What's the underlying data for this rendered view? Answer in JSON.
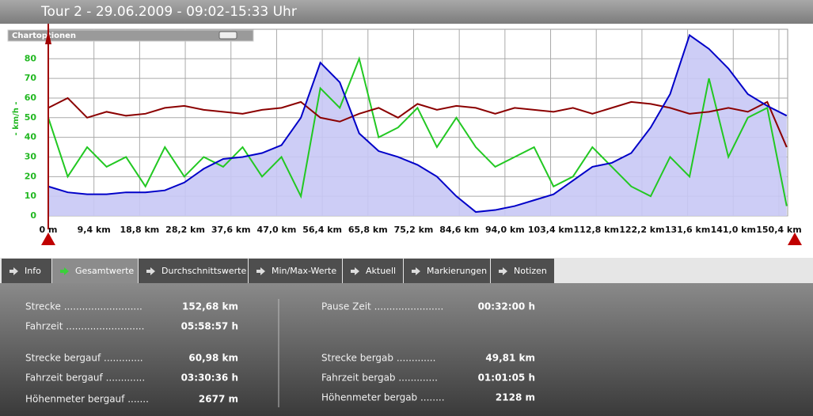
{
  "header": {
    "title": "Tour 2 - 29.06.2009 - 09:02-15:33 Uhr"
  },
  "chart_options": "Chartoptionen",
  "chart_data": {
    "type": "line",
    "y_label": "- km/h -",
    "x": [
      0,
      4,
      8,
      12,
      16,
      20,
      24,
      28,
      32,
      36,
      40,
      44,
      48,
      52,
      56,
      60,
      64,
      68,
      72,
      76,
      80,
      84,
      88,
      92,
      96,
      100,
      104,
      108,
      112,
      116,
      120,
      124,
      128,
      132,
      136,
      140,
      144,
      148,
      152
    ],
    "series": [
      {
        "color": "#0000c8",
        "fill": "#c8c8f5",
        "values": [
          15,
          12,
          11,
          11,
          12,
          12,
          13,
          17,
          24,
          29,
          30,
          32,
          36,
          50,
          78,
          68,
          42,
          33,
          30,
          26,
          20,
          10,
          2,
          3,
          5,
          8,
          11,
          18,
          25,
          27,
          32,
          45,
          62,
          92,
          85,
          75,
          62,
          56,
          51
        ]
      },
      {
        "color": "#22c822",
        "values": [
          50,
          20,
          35,
          25,
          30,
          15,
          35,
          20,
          30,
          25,
          35,
          20,
          30,
          10,
          65,
          55,
          80,
          40,
          45,
          55,
          35,
          50,
          35,
          25,
          30,
          35,
          15,
          20,
          35,
          25,
          15,
          10,
          30,
          20,
          70,
          30,
          50,
          55,
          5
        ]
      },
      {
        "color": "#8b0000",
        "values": [
          55,
          60,
          50,
          53,
          51,
          52,
          55,
          56,
          54,
          53,
          52,
          54,
          55,
          58,
          50,
          48,
          52,
          55,
          50,
          57,
          54,
          56,
          55,
          52,
          55,
          54,
          53,
          55,
          52,
          55,
          58,
          57,
          55,
          52,
          53,
          55,
          53,
          58,
          35
        ]
      }
    ],
    "xlim": [
      0,
      152.2
    ],
    "ylim": [
      0,
      95
    ],
    "xticks": [
      {
        "value": 0,
        "label": "0 m"
      },
      {
        "value": 9.4,
        "label": "9,4 km"
      },
      {
        "value": 18.8,
        "label": "18,8 km"
      },
      {
        "value": 28.2,
        "label": "28,2 km"
      },
      {
        "value": 37.6,
        "label": "37,6 km"
      },
      {
        "value": 47.0,
        "label": "47,0 km"
      },
      {
        "value": 56.4,
        "label": "56,4 km"
      },
      {
        "value": 65.8,
        "label": "65,8 km"
      },
      {
        "value": 75.2,
        "label": "75,2 km"
      },
      {
        "value": 84.6,
        "label": "84,6 km"
      },
      {
        "value": 94.0,
        "label": "94,0 km"
      },
      {
        "value": 103.4,
        "label": "103,4 km"
      },
      {
        "value": 112.8,
        "label": "112,8 km"
      },
      {
        "value": 122.2,
        "label": "122,2 km"
      },
      {
        "value": 131.6,
        "label": "131,6 km"
      },
      {
        "value": 141.0,
        "label": "141,0 km"
      },
      {
        "value": 150.4,
        "label": "150,4 km"
      }
    ],
    "yticks": [
      0,
      10,
      20,
      30,
      40,
      50,
      60,
      70,
      80
    ],
    "grid": true
  },
  "tabs": [
    "Info",
    "Gesamtwerte",
    "Durchschnittswerte",
    "Min/Max-Werte",
    "Aktuell",
    "Markierungen",
    "Notizen"
  ],
  "active_tab": 1,
  "stats": {
    "left": [
      {
        "label": "Strecke ..........................",
        "value": "152,68 km"
      },
      {
        "label": "Fahrzeit ..........................",
        "value": "05:58:57 h"
      },
      {
        "label": "Strecke bergauf .............",
        "value": "60,98 km"
      },
      {
        "label": "Fahrzeit bergauf .............",
        "value": "03:30:36 h"
      },
      {
        "label": "Höhenmeter bergauf .......",
        "value": "2677 m"
      }
    ],
    "right": [
      {
        "label": "Pause Zeit .......................",
        "value": "00:32:00 h"
      },
      {
        "label": "Strecke bergab .............",
        "value": "49,81 km"
      },
      {
        "label": "Fahrzeit bergab .............",
        "value": "01:01:05 h"
      },
      {
        "label": "Höhenmeter bergab ........",
        "value": "2128 m"
      }
    ]
  }
}
